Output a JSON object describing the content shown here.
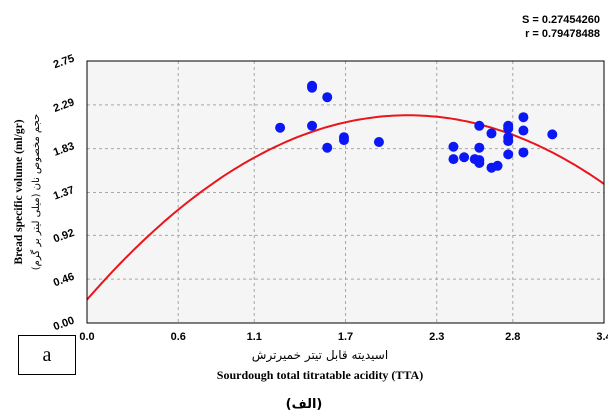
{
  "stats": {
    "s_text": "S = 0.27454260",
    "r_text": "r = 0.79478488"
  },
  "panel_letter": "a",
  "caption": "(الف)",
  "colors": {
    "points": "#0b17f5",
    "fit_curve": "#e8161c",
    "grid": "#a8a8a8",
    "background": "#f5f5f5"
  },
  "chart_data": {
    "type": "scatter",
    "title": "",
    "xlabel_fa": "اسیدیته قابل تیتر خمیرترش",
    "xlabel_en": "Sourdough total titratable acidity (TTA)",
    "ylabel_en": "Bread specific volume (ml/gr)",
    "ylabel_fa": "حجم مخصوص نان (میلی لیتر بر گرم)",
    "x_ticks": [
      "0.0",
      "0.6",
      "1.1",
      "1.7",
      "2.3",
      "2.8",
      "3.4"
    ],
    "y_ticks": [
      "0.00",
      "0.46",
      "0.92",
      "1.37",
      "1.83",
      "2.29",
      "2.75"
    ],
    "xlim": [
      0.0,
      3.4
    ],
    "ylim": [
      0.0,
      2.75
    ],
    "grid": true,
    "series": [
      {
        "type": "scatter",
        "points": [
          [
            1.27,
            2.05
          ],
          [
            1.48,
            2.49
          ],
          [
            1.48,
            2.47
          ],
          [
            1.48,
            2.07
          ],
          [
            1.58,
            2.37
          ],
          [
            1.58,
            1.84
          ],
          [
            1.69,
            1.95
          ],
          [
            1.69,
            1.92
          ],
          [
            1.92,
            1.9
          ],
          [
            2.41,
            1.85
          ],
          [
            2.41,
            1.72
          ],
          [
            2.48,
            1.74
          ],
          [
            2.55,
            1.72
          ],
          [
            2.58,
            2.07
          ],
          [
            2.58,
            1.84
          ],
          [
            2.58,
            1.68
          ],
          [
            2.58,
            1.71
          ],
          [
            2.66,
            1.99
          ],
          [
            2.66,
            1.63
          ],
          [
            2.7,
            1.65
          ],
          [
            2.77,
            2.07
          ],
          [
            2.77,
            2.04
          ],
          [
            2.77,
            1.95
          ],
          [
            2.77,
            1.91
          ],
          [
            2.77,
            1.77
          ],
          [
            2.87,
            2.16
          ],
          [
            2.87,
            2.02
          ],
          [
            2.87,
            1.79
          ],
          [
            3.06,
            1.98
          ]
        ]
      },
      {
        "type": "line",
        "fit": "quadratic",
        "coefficients": {
          "a": -0.434,
          "b": 1.833,
          "c": 0.245
        }
      }
    ]
  }
}
